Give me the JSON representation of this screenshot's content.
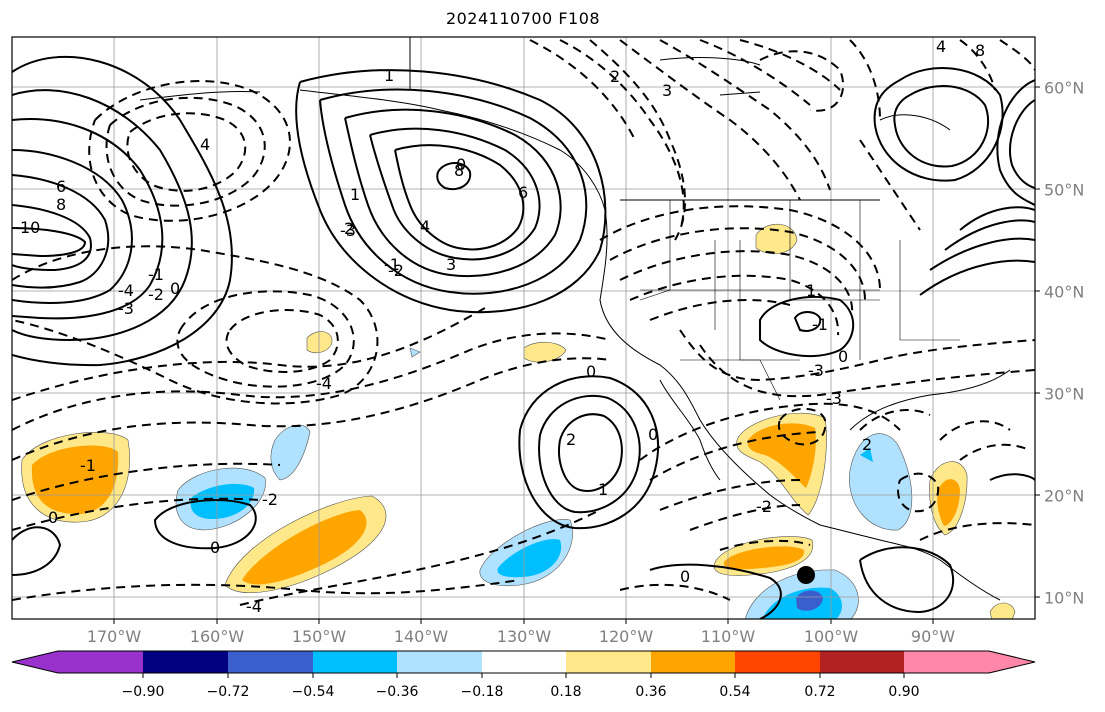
{
  "title": "2024110700 F108",
  "lon_labels": [
    "170°W",
    "160°W",
    "150°W",
    "140°W",
    "130°W",
    "120°W",
    "110°W",
    "100°W",
    "90°W"
  ],
  "lat_labels": [
    "60°N",
    "50°N",
    "40°N",
    "30°N",
    "20°N",
    "10°N"
  ],
  "colorbar": {
    "ticks": [
      "−0.90",
      "−0.72",
      "−0.54",
      "−0.36",
      "−0.18",
      "0.18",
      "0.36",
      "0.54",
      "0.72",
      "0.90"
    ],
    "colors": [
      "#9932cc",
      "#000080",
      "#3a5fcd",
      "#00bfff",
      "#b0e2ff",
      "#ffffff",
      "#ffe88a",
      "#ffa500",
      "#ff4500",
      "#b22222",
      "#ff88aa"
    ]
  },
  "contour_labels": [
    "1",
    "2",
    "3",
    "4",
    "6",
    "8",
    "10",
    "0",
    "-1",
    "-2",
    "-3",
    "-4",
    "0",
    "1",
    "2",
    "3",
    "4",
    "6",
    "8",
    "0",
    "-1",
    "-2",
    "-3",
    "-4",
    "0",
    "2",
    "1",
    "0",
    "-1",
    "-2",
    "0",
    "1",
    "-3",
    "-2",
    "0",
    "2",
    "0",
    "-4",
    "-3",
    "-1",
    "4",
    "8"
  ],
  "marker": "black-dot"
}
